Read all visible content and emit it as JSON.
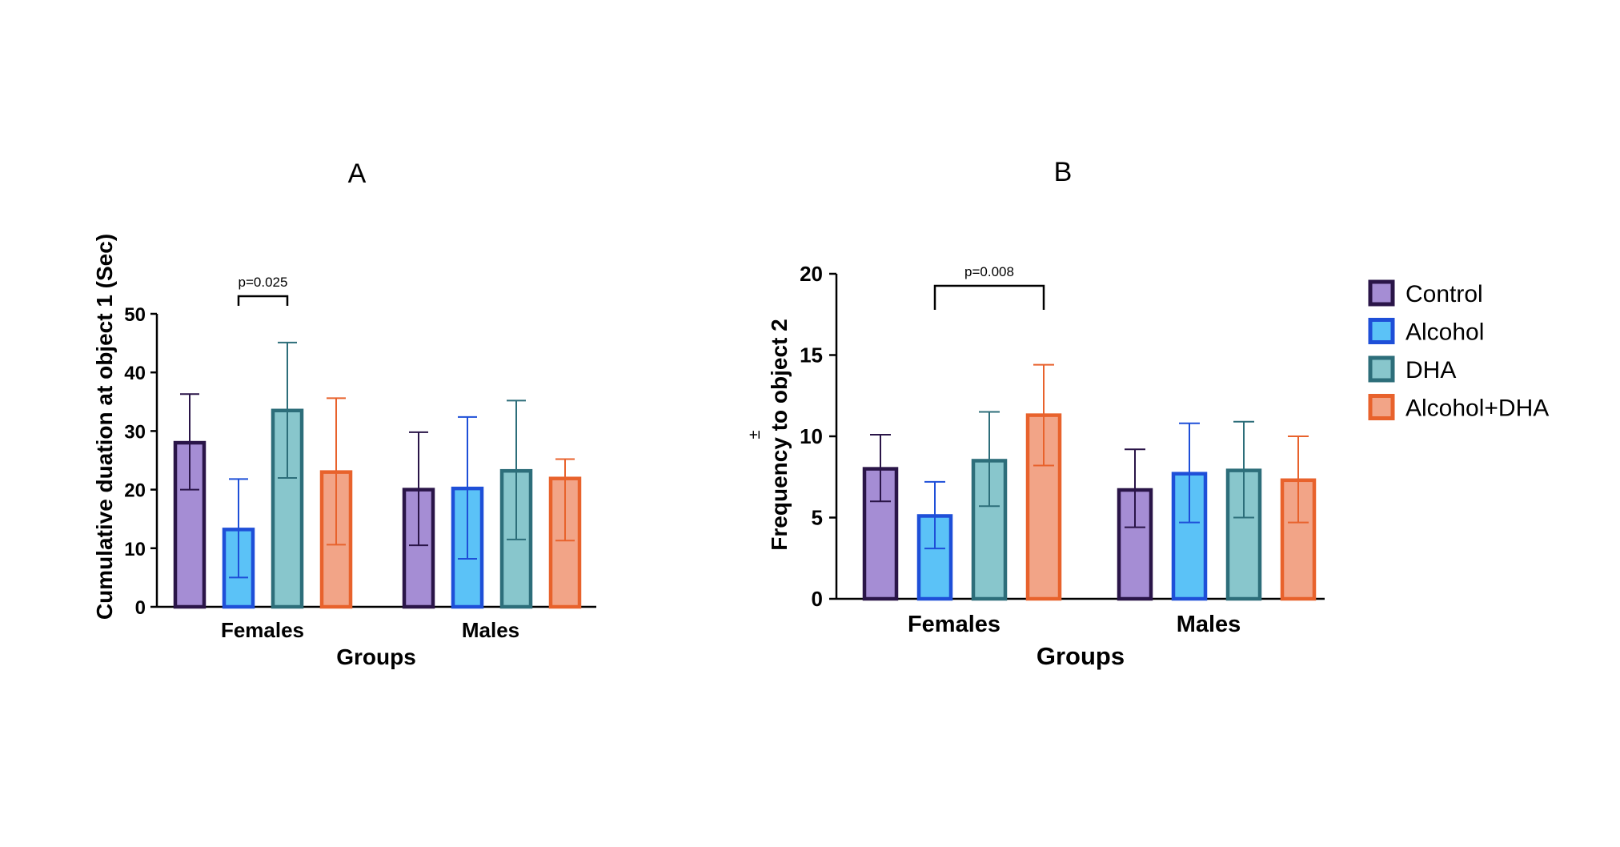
{
  "colors": {
    "Control": {
      "fill": "#A58DD4",
      "stroke": "#2A1548"
    },
    "Alcohol": {
      "fill": "#5BC2F7",
      "stroke": "#1E4FD8"
    },
    "DHA": {
      "fill": "#88C6CC",
      "stroke": "#2D6E7A"
    },
    "Alcohol+DHA": {
      "fill": "#F2A487",
      "stroke": "#E8622C"
    }
  },
  "legend": [
    "Control",
    "Alcohol",
    "DHA",
    "Alcohol+DHA"
  ],
  "chart_data": [
    {
      "type": "bar",
      "panel": "A",
      "title": "A",
      "xlabel": "Groups",
      "ylabel": "Cumulative duation at object 1 (Sec)",
      "categories": [
        "Females",
        "Males"
      ],
      "ylim": [
        0,
        50
      ],
      "yticks": [
        0,
        10,
        20,
        30,
        40,
        50
      ],
      "series": [
        {
          "name": "Control",
          "values": [
            28,
            20
          ],
          "error_upper": [
            36.3,
            29.8
          ],
          "error_lower": [
            20,
            10.5
          ]
        },
        {
          "name": "Alcohol",
          "values": [
            13.2,
            20.2
          ],
          "error_upper": [
            21.8,
            32.4
          ],
          "error_lower": [
            5,
            8.2
          ]
        },
        {
          "name": "DHA",
          "values": [
            33.5,
            23.2
          ],
          "error_upper": [
            45.1,
            35.2
          ],
          "error_lower": [
            22,
            11.5
          ]
        },
        {
          "name": "Alcohol+DHA",
          "values": [
            23,
            21.9
          ],
          "error_upper": [
            35.6,
            25.2
          ],
          "error_lower": [
            10.6,
            11.3
          ]
        }
      ],
      "annotation": {
        "text": "p=0.025",
        "category": "Females",
        "from_series": "Alcohol",
        "to_series": "DHA"
      }
    },
    {
      "type": "bar",
      "panel": "B",
      "title": "B",
      "xlabel": "Groups",
      "ylabel": "Frequency to object 2",
      "ylabel_extra": "±",
      "categories": [
        "Females",
        "Males"
      ],
      "ylim": [
        0,
        20
      ],
      "yticks": [
        0,
        5,
        10,
        15,
        20
      ],
      "series": [
        {
          "name": "Control",
          "values": [
            8,
            6.7
          ],
          "error_upper": [
            10.1,
            9.2
          ],
          "error_lower": [
            6,
            4.4
          ]
        },
        {
          "name": "Alcohol",
          "values": [
            5.1,
            7.7
          ],
          "error_upper": [
            7.2,
            10.8
          ],
          "error_lower": [
            3.1,
            4.7
          ]
        },
        {
          "name": "DHA",
          "values": [
            8.5,
            7.9
          ],
          "error_upper": [
            11.5,
            10.9
          ],
          "error_lower": [
            5.7,
            5
          ]
        },
        {
          "name": "Alcohol+DHA",
          "values": [
            11.3,
            7.3
          ],
          "error_upper": [
            14.4,
            10
          ],
          "error_lower": [
            8.2,
            4.7
          ]
        }
      ],
      "annotation": {
        "text": "p=0.008",
        "category": "Females",
        "from_series": "Alcohol",
        "to_series": "Alcohol+DHA"
      }
    }
  ]
}
